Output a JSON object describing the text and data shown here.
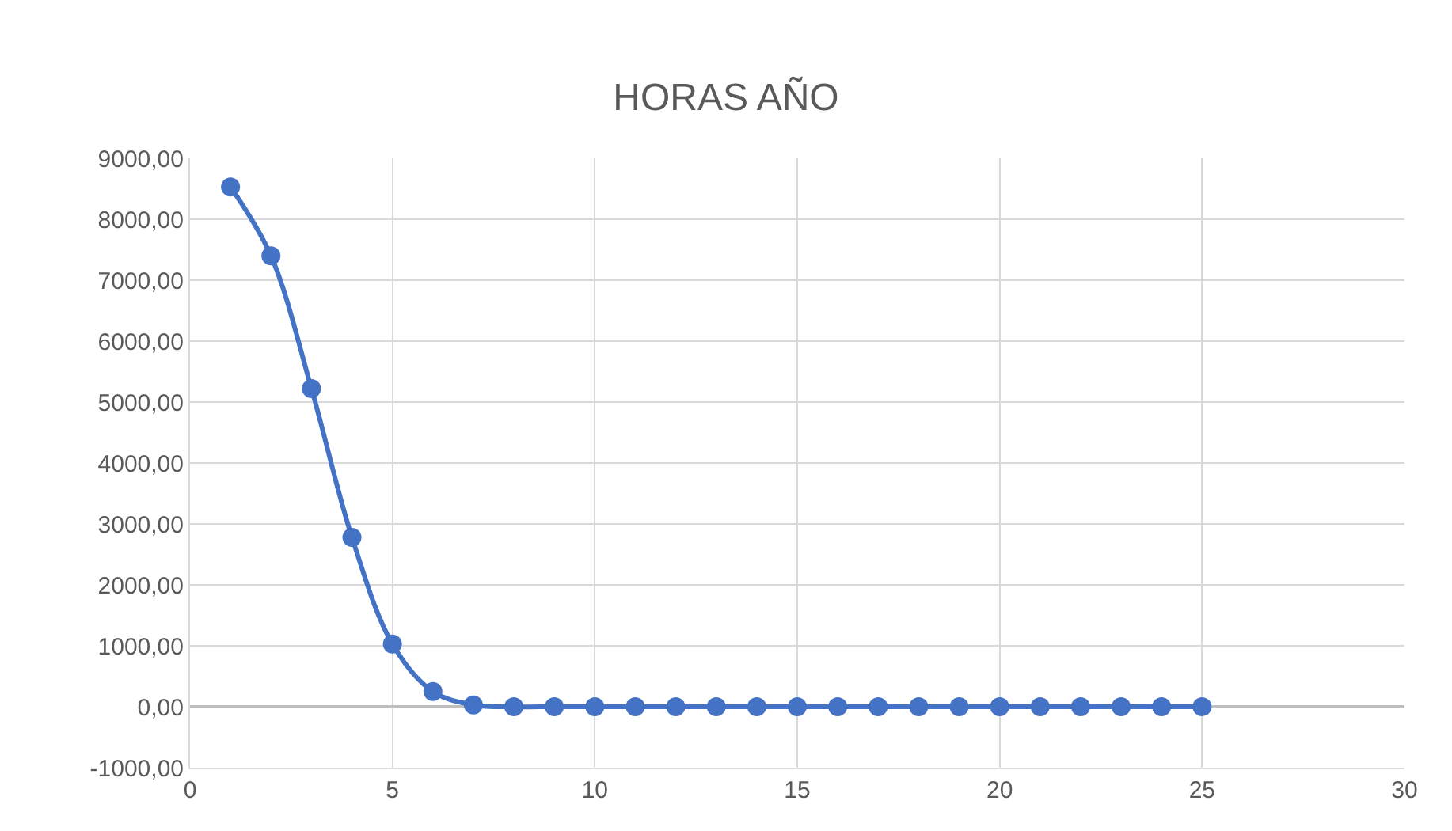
{
  "chart_data": {
    "type": "line",
    "title": "HORAS AÑO",
    "x": [
      1,
      2,
      3,
      4,
      5,
      6,
      7,
      8,
      9,
      10,
      11,
      12,
      13,
      14,
      15,
      16,
      17,
      18,
      19,
      20,
      21,
      22,
      23,
      24,
      25
    ],
    "series": [
      {
        "color": "#4472c4",
        "values": [
          8530,
          7400,
          5220,
          2780,
          1030,
          250,
          30,
          0,
          0,
          0,
          0,
          0,
          0,
          0,
          0,
          0,
          0,
          0,
          0,
          0,
          0,
          0,
          0,
          0,
          0
        ]
      }
    ],
    "xlim": [
      0,
      30
    ],
    "xticks": [
      0,
      5,
      10,
      15,
      20,
      25,
      30
    ],
    "ylim": [
      -1000,
      9000
    ],
    "yticks": [
      {
        "value": -1000,
        "label": "-1000,00"
      },
      {
        "value": 0,
        "label": "0,00"
      },
      {
        "value": 1000,
        "label": "1000,00"
      },
      {
        "value": 2000,
        "label": "2000,00"
      },
      {
        "value": 3000,
        "label": "3000,00"
      },
      {
        "value": 4000,
        "label": "4000,00"
      },
      {
        "value": 5000,
        "label": "5000,00"
      },
      {
        "value": 6000,
        "label": "6000,00"
      },
      {
        "value": 7000,
        "label": "7000,00"
      },
      {
        "value": 8000,
        "label": "8000,00"
      },
      {
        "value": 9000,
        "label": "9000,00"
      }
    ],
    "grid": true,
    "marker": "circle",
    "line_style": "solid",
    "legend": false
  }
}
